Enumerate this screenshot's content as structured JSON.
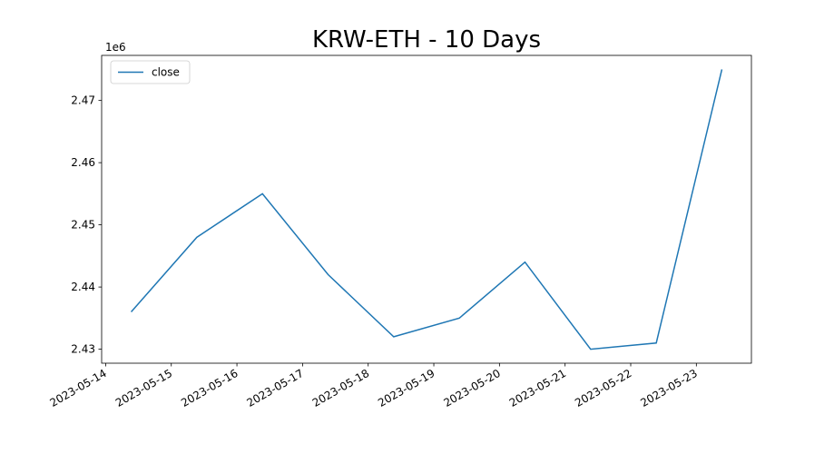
{
  "chart_data": {
    "type": "line",
    "title": "KRW-ETH - 10 Days",
    "x": [
      "2023-05-14T09:20",
      "2023-05-15T09:20",
      "2023-05-16T09:20",
      "2023-05-17T09:20",
      "2023-05-18T09:20",
      "2023-05-19T09:20",
      "2023-05-20T09:20",
      "2023-05-21T09:20",
      "2023-05-22T09:20",
      "2023-05-23T09:20"
    ],
    "series": [
      {
        "name": "close",
        "color": "#1f77b4",
        "values": [
          2436000,
          2448000,
          2455000,
          2442000,
          2432000,
          2435000,
          2444000,
          2430000,
          2431000,
          2475000
        ]
      }
    ],
    "xlim": [
      "2023-05-13T22:32",
      "2023-05-23T20:08"
    ],
    "xticks": [
      "2023-05-14",
      "2023-05-15",
      "2023-05-16",
      "2023-05-17",
      "2023-05-18",
      "2023-05-19",
      "2023-05-20",
      "2023-05-21",
      "2023-05-22",
      "2023-05-23"
    ],
    "ylim": [
      2427750,
      2477250
    ],
    "yticks": [
      {
        "value": 2430000,
        "label": "2.43"
      },
      {
        "value": 2440000,
        "label": "2.44"
      },
      {
        "value": 2450000,
        "label": "2.45"
      },
      {
        "value": 2460000,
        "label": "2.46"
      },
      {
        "value": 2470000,
        "label": "2.47"
      }
    ],
    "y_offset_label": "1e6",
    "legend": "upper left",
    "grid": false
  }
}
